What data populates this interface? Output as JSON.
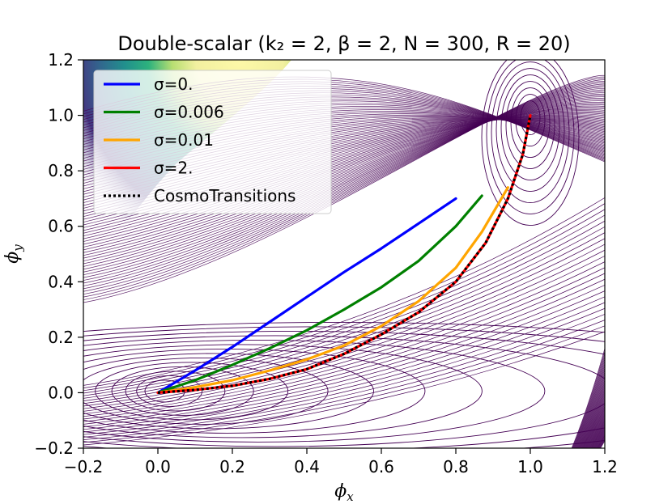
{
  "chart_data": {
    "type": "line",
    "title": "Double-scalar (k₂ = 2,  β = 2,  N = 300,  R = 20)",
    "xlabel": "ϕx",
    "ylabel": "ϕy",
    "xlim": [
      -0.2,
      1.2
    ],
    "ylim": [
      -0.2,
      1.2
    ],
    "xticks": [
      "−0.2",
      "0.0",
      "0.2",
      "0.4",
      "0.6",
      "0.8",
      "1.0",
      "1.2"
    ],
    "yticks": [
      "−0.2",
      "0.0",
      "0.2",
      "0.4",
      "0.6",
      "0.8",
      "1.0",
      "1.2"
    ],
    "x_tick_values": [
      -0.2,
      0.0,
      0.2,
      0.4,
      0.6,
      0.8,
      1.0,
      1.2
    ],
    "y_tick_values": [
      -0.2,
      0.0,
      0.2,
      0.4,
      0.6,
      0.8,
      1.0,
      1.2
    ],
    "grid": false,
    "legend_position": "top-left",
    "background": "contour plot of the double-scalar potential (viridis colormap)",
    "minima": [
      {
        "x": 0.0,
        "y": 0.0
      },
      {
        "x": 1.0,
        "y": 1.0
      }
    ],
    "series": [
      {
        "name": "σ=0.",
        "color": "#0000ff",
        "dash": "solid",
        "x": [
          0.0,
          0.1,
          0.2,
          0.3,
          0.4,
          0.5,
          0.6,
          0.7,
          0.8
        ],
        "y": [
          0.0,
          0.08,
          0.165,
          0.255,
          0.345,
          0.435,
          0.52,
          0.61,
          0.7
        ]
      },
      {
        "name": "σ=0.006",
        "color": "#008000",
        "dash": "solid",
        "x": [
          0.0,
          0.1,
          0.2,
          0.3,
          0.4,
          0.5,
          0.6,
          0.7,
          0.8,
          0.87
        ],
        "y": [
          0.0,
          0.045,
          0.1,
          0.16,
          0.225,
          0.3,
          0.38,
          0.475,
          0.6,
          0.71
        ]
      },
      {
        "name": "σ=0.01",
        "color": "#ffa500",
        "dash": "solid",
        "x": [
          0.0,
          0.1,
          0.2,
          0.3,
          0.4,
          0.5,
          0.6,
          0.7,
          0.8,
          0.87,
          0.94
        ],
        "y": [
          0.0,
          0.02,
          0.045,
          0.08,
          0.12,
          0.17,
          0.24,
          0.33,
          0.45,
          0.58,
          0.74
        ]
      },
      {
        "name": "σ=2.",
        "color": "#ff0000",
        "dash": "solid",
        "x": [
          0.0,
          0.1,
          0.2,
          0.3,
          0.4,
          0.5,
          0.6,
          0.7,
          0.8,
          0.88,
          0.94,
          0.98,
          1.0
        ],
        "y": [
          0.0,
          0.01,
          0.025,
          0.05,
          0.085,
          0.14,
          0.21,
          0.29,
          0.4,
          0.54,
          0.7,
          0.86,
          1.0
        ]
      },
      {
        "name": "CosmoTransitions",
        "color": "#000000",
        "dash": "dotted",
        "x": [
          0.0,
          0.1,
          0.2,
          0.3,
          0.4,
          0.5,
          0.6,
          0.7,
          0.8,
          0.88,
          0.94,
          0.98,
          1.0
        ],
        "y": [
          0.0,
          0.01,
          0.025,
          0.05,
          0.085,
          0.14,
          0.21,
          0.29,
          0.4,
          0.54,
          0.7,
          0.86,
          1.0
        ]
      }
    ]
  }
}
